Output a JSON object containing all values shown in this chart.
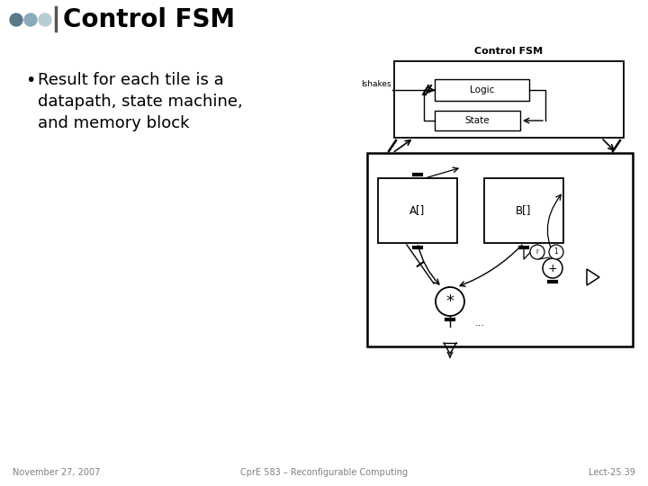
{
  "title": "Control FSM",
  "bullet_text": [
    "Result for each tile is a",
    "datapath, state machine,",
    "and memory block"
  ],
  "footer_left": "November 27, 2007",
  "footer_center": "CprE 583 – Reconfigurable Computing",
  "footer_right": "Lect-25.39",
  "bg_color": "#ffffff",
  "title_color": "#000000",
  "bullet_color": "#000000",
  "footer_color": "#808080",
  "dot_colors": [
    "#5a7a8a",
    "#8aaabb",
    "#b8ccd4"
  ],
  "diagram": {
    "fsm_label": "Control FSM",
    "logic_label": "Logic",
    "state_label": "State",
    "ishakes_label": "Ishakes",
    "a_label": "A[]",
    "b_label": "B[]",
    "dots": "..."
  }
}
